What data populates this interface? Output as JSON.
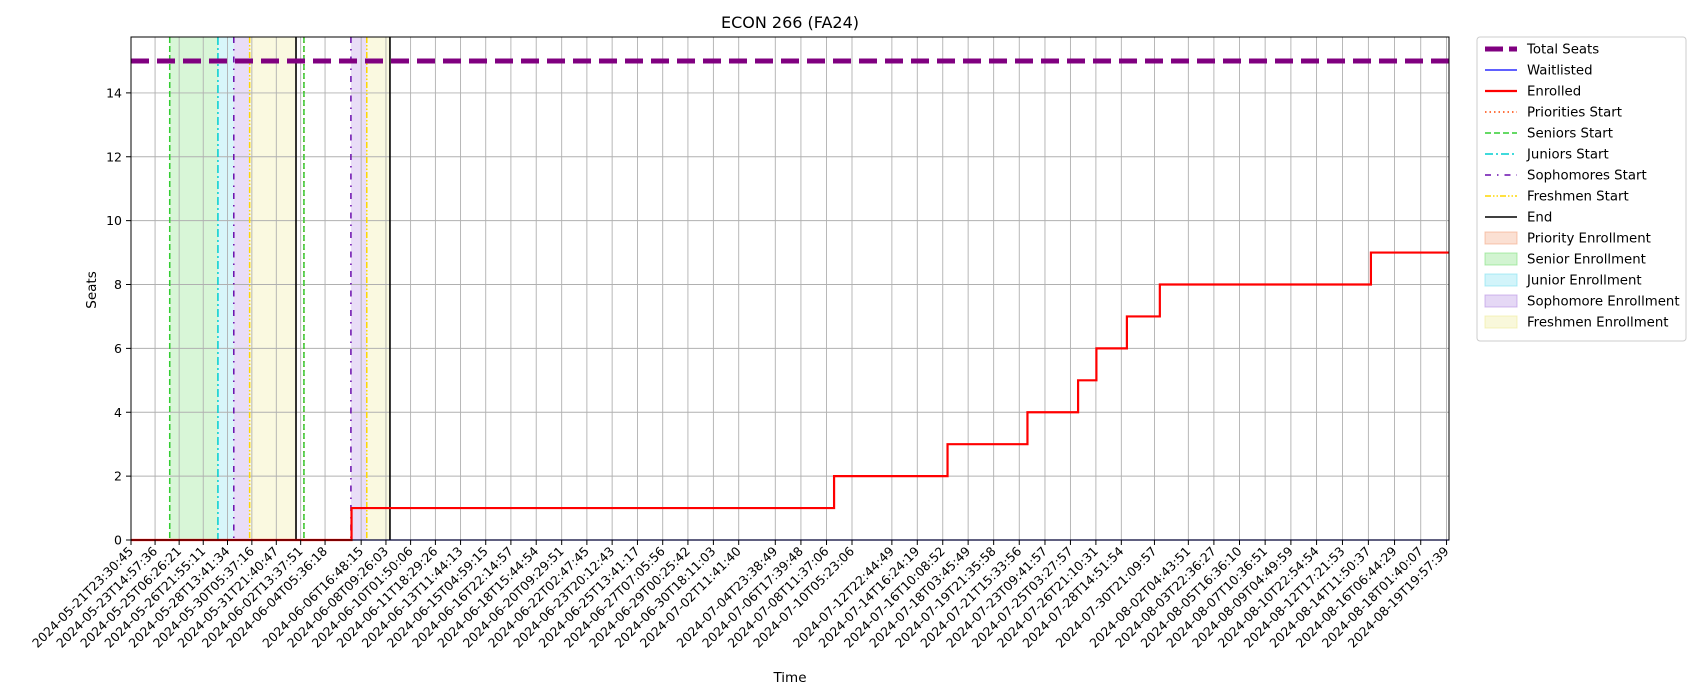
{
  "chart_data": {
    "type": "line",
    "title": "ECON 266 (FA24)",
    "xlabel": "Time",
    "ylabel": "Seats",
    "x_range": [
      "2024-05-21T23:30:45",
      "2024-08-20T00:00:00"
    ],
    "ylim": [
      0,
      15.75
    ],
    "y_ticks": [
      0,
      2,
      4,
      6,
      8,
      10,
      12,
      14
    ],
    "grid": true,
    "legend_position": "outside-right-top",
    "x_tick_labels": [
      "2024-05-21T23:30:45",
      "2024-05-23T14:57:36",
      "2024-05-25T06:26:21",
      "2024-05-26T21:55:11",
      "2024-05-28T13:41:34",
      "2024-05-30T05:37:16",
      "2024-05-31T21:40:47",
      "2024-06-02T13:37:51",
      "2024-06-04T05:36:18",
      "2024-06-06T16:48:15",
      "2024-06-08T09:26:03",
      "2024-06-10T01:50:06",
      "2024-06-11T18:29:26",
      "2024-06-13T11:44:13",
      "2024-06-15T04:59:15",
      "2024-06-16T22:14:57",
      "2024-06-18T15:44:54",
      "2024-06-20T09:29:51",
      "2024-06-22T02:47:45",
      "2024-06-23T20:12:43",
      "2024-06-25T13:41:17",
      "2024-06-27T07:05:56",
      "2024-06-29T00:25:42",
      "2024-06-30T18:11:03",
      "2024-07-02T11:41:40",
      "2024-07-04T23:38:49",
      "2024-07-06T17:39:48",
      "2024-07-08T11:37:06",
      "2024-07-10T05:23:06",
      "2024-07-12T22:44:49",
      "2024-07-14T16:24:19",
      "2024-07-16T10:08:52",
      "2024-07-18T03:45:49",
      "2024-07-19T21:35:58",
      "2024-07-21T15:33:56",
      "2024-07-23T09:41:57",
      "2024-07-25T03:27:57",
      "2024-07-26T21:10:31",
      "2024-07-28T14:51:54",
      "2024-07-30T21:09:57",
      "2024-08-02T04:43:51",
      "2024-08-03T22:36:27",
      "2024-08-05T16:36:10",
      "2024-08-07T10:36:51",
      "2024-08-09T04:49:59",
      "2024-08-10T22:54:54",
      "2024-08-12T17:21:53",
      "2024-08-14T11:50:37",
      "2024-08-16T06:44:29",
      "2024-08-18T01:40:07",
      "2024-08-19T19:57:39"
    ],
    "total_seats": 15,
    "series": [
      {
        "name": "Total Seats",
        "color": "#800080",
        "x": [
          "2024-05-21T23:30:45",
          "2024-08-20T00:00:00"
        ],
        "values": [
          15,
          15
        ]
      },
      {
        "name": "Waitlisted",
        "color": "#0000ff",
        "x": [
          "2024-05-21T23:30:45",
          "2024-08-20T00:00:00"
        ],
        "values": [
          0,
          0
        ]
      },
      {
        "name": "Enrolled",
        "color": "#ff0000",
        "step": "post",
        "x": [
          "2024-05-21T23:30:45",
          "2024-06-06T01:00:00",
          "2024-07-09T00:00:00",
          "2024-07-16T18:00:00",
          "2024-07-22T05:00:00",
          "2024-07-25T16:00:00",
          "2024-07-26T22:00:00",
          "2024-07-29T00:00:00",
          "2024-07-31T06:00:00",
          "2024-08-14T16:00:00",
          "2024-08-20T00:00:00"
        ],
        "values": [
          0,
          1,
          2,
          3,
          4,
          5,
          6,
          7,
          8,
          9,
          9
        ]
      }
    ],
    "event_lines": [
      {
        "name": "Priorities Start",
        "color": "#ff4500",
        "style": "dotted",
        "x": [
          "2024-05-24T15:00:00",
          "2024-06-02T19:00:00"
        ]
      },
      {
        "name": "Seniors Start",
        "color": "#32cd32",
        "style": "dashed",
        "x": [
          "2024-05-24T15:00:00",
          "2024-06-02T19:00:00"
        ]
      },
      {
        "name": "Juniors Start",
        "color": "#00ced1",
        "style": "dashdot",
        "x": [
          "2024-05-27T22:00:00"
        ]
      },
      {
        "name": "Sophomores Start",
        "color": "#6a0dad",
        "style": "loose-dashdot",
        "x": [
          "2024-05-29T00:00:00",
          "2024-06-06T00:00:00"
        ]
      },
      {
        "name": "Freshmen Start",
        "color": "#ffd700",
        "style": "dashdotdot",
        "x": [
          "2024-05-30T02:00:00",
          "2024-06-07T02:00:00"
        ]
      },
      {
        "name": "End",
        "color": "#000000",
        "style": "solid",
        "x": [
          "2024-06-02T06:00:00",
          "2024-06-08T16:00:00"
        ]
      }
    ],
    "enrollment_windows": [
      {
        "name": "Priority Enrollment",
        "color": "#f4a582",
        "ranges": []
      },
      {
        "name": "Senior Enrollment",
        "color": "#7fe07a",
        "ranges": [
          [
            "2024-05-24T15:00:00",
            "2024-05-27T22:00:00"
          ]
        ]
      },
      {
        "name": "Junior Enrollment",
        "color": "#7fe0f0",
        "ranges": [
          [
            "2024-05-27T22:00:00",
            "2024-05-29T00:00:00"
          ]
        ]
      },
      {
        "name": "Sophomore Enrollment",
        "color": "#b58ee3",
        "ranges": [
          [
            "2024-05-29T00:00:00",
            "2024-05-30T02:00:00"
          ],
          [
            "2024-06-06T00:00:00",
            "2024-06-07T02:00:00"
          ]
        ]
      },
      {
        "name": "Freshmen Enrollment",
        "color": "#eeeb98",
        "ranges": [
          [
            "2024-05-30T02:00:00",
            "2024-06-02T06:00:00"
          ],
          [
            "2024-06-07T02:00:00",
            "2024-06-08T16:00:00"
          ]
        ]
      }
    ],
    "legend": [
      "Total Seats",
      "Waitlisted",
      "Enrolled",
      "Priorities Start",
      "Seniors Start",
      "Juniors Start",
      "Sophomores Start",
      "Freshmen Start",
      "End",
      "Priority Enrollment",
      "Senior Enrollment",
      "Junior Enrollment",
      "Sophomore Enrollment",
      "Freshmen Enrollment"
    ]
  }
}
